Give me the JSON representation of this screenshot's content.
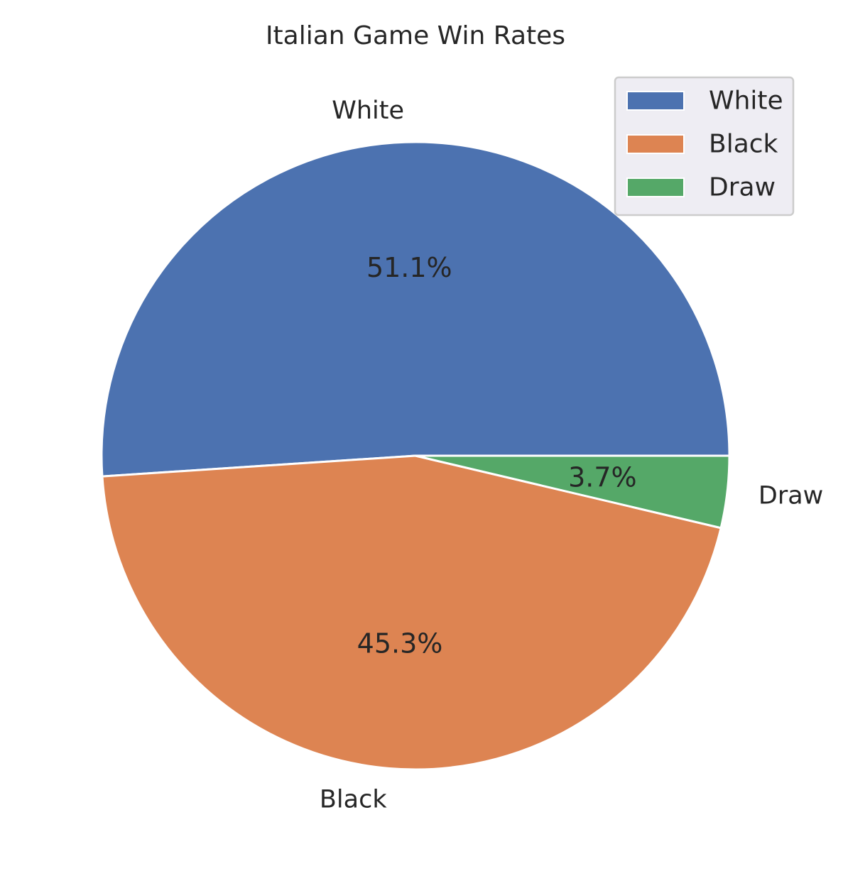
{
  "chart_data": {
    "type": "pie",
    "title": "Italian Game Win Rates",
    "categories": [
      "White",
      "Black",
      "Draw"
    ],
    "values": [
      51.1,
      45.3,
      3.7
    ],
    "percent_labels": [
      "51.1%",
      "45.3%",
      "3.7%"
    ],
    "colors": [
      "#4c72b0",
      "#dd8452",
      "#55a868"
    ],
    "start_angle_deg": 0,
    "direction": "counterclockwise",
    "legend": {
      "position": "top-right",
      "entries": [
        "White",
        "Black",
        "Draw"
      ]
    }
  }
}
